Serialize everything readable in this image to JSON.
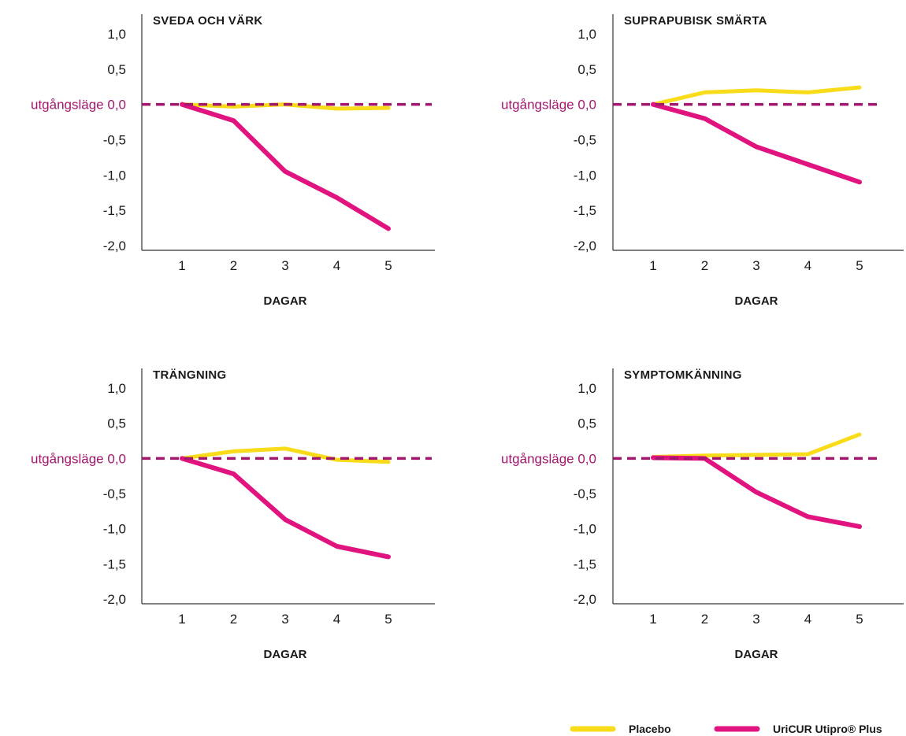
{
  "baseline_text": "utgångsläge",
  "colors": {
    "placebo": "#f8dc1a",
    "uricur": "#e0137f",
    "baseline": "#a3166d",
    "axis": "#333333",
    "text": "#1a1a1a"
  },
  "legend": {
    "items": [
      {
        "label": "Placebo",
        "color": "#f8dc1a"
      },
      {
        "label": "UriCUR Utipro® Plus",
        "color": "#e0137f"
      }
    ]
  },
  "chart_data": [
    {
      "type": "line",
      "title": "SVEDA OCH VÄRK",
      "xlabel": "DAGAR",
      "ylabel": "",
      "x": [
        1,
        2,
        3,
        4,
        5
      ],
      "x_tick_labels": [
        "1",
        "2",
        "3",
        "4",
        "5"
      ],
      "y_ticks": [
        1.0,
        0.5,
        0.0,
        -0.5,
        -1.0,
        -1.5,
        -2.0
      ],
      "y_tick_labels": [
        "1,0",
        "0,5",
        "0,0",
        "-0,5",
        "-1,0",
        "-1,5",
        "-2,0"
      ],
      "ylim": [
        -2.0,
        1.2
      ],
      "baseline": 0.0,
      "series": [
        {
          "name": "Placebo",
          "values": [
            0.0,
            -0.03,
            0.0,
            -0.06,
            -0.05
          ]
        },
        {
          "name": "UriCUR Utipro® Plus",
          "values": [
            0.0,
            -0.23,
            -0.95,
            -1.32,
            -1.76
          ]
        }
      ]
    },
    {
      "type": "line",
      "title": "SUPRAPUBISK SMÄRTA",
      "xlabel": "DAGAR",
      "ylabel": "",
      "x": [
        1,
        2,
        3,
        4,
        5
      ],
      "x_tick_labels": [
        "1",
        "2",
        "3",
        "4",
        "5"
      ],
      "y_ticks": [
        1.0,
        0.5,
        0.0,
        -0.5,
        -1.0,
        -1.5,
        -2.0
      ],
      "y_tick_labels": [
        "1,0",
        "0,5",
        "0,0",
        "-0,5",
        "-1,0",
        "-1,5",
        "-2,0"
      ],
      "ylim": [
        -2.0,
        1.2
      ],
      "baseline": 0.0,
      "series": [
        {
          "name": "Placebo",
          "values": [
            0.0,
            0.17,
            0.2,
            0.17,
            0.24
          ]
        },
        {
          "name": "UriCUR Utipro® Plus",
          "values": [
            0.0,
            -0.2,
            -0.6,
            -0.85,
            -1.1
          ]
        }
      ]
    },
    {
      "type": "line",
      "title": "TRÄNGNING",
      "xlabel": "DAGAR",
      "ylabel": "",
      "x": [
        1,
        2,
        3,
        4,
        5
      ],
      "x_tick_labels": [
        "1",
        "2",
        "3",
        "4",
        "5"
      ],
      "y_ticks": [
        1.0,
        0.5,
        0.0,
        -0.5,
        -1.0,
        -1.5,
        -2.0
      ],
      "y_tick_labels": [
        "1,0",
        "0,5",
        "0,0",
        "-0,5",
        "-1,0",
        "-1,5",
        "-2,0"
      ],
      "ylim": [
        -2.0,
        1.2
      ],
      "baseline": 0.0,
      "series": [
        {
          "name": "Placebo",
          "values": [
            0.0,
            0.1,
            0.14,
            -0.02,
            -0.05
          ]
        },
        {
          "name": "UriCUR Utipro® Plus",
          "values": [
            0.0,
            -0.22,
            -0.87,
            -1.25,
            -1.4
          ]
        }
      ]
    },
    {
      "type": "line",
      "title": "SYMPTOMKÄNNING",
      "xlabel": "DAGAR",
      "ylabel": "",
      "x": [
        1,
        2,
        3,
        4,
        5
      ],
      "x_tick_labels": [
        "1",
        "2",
        "3",
        "4",
        "5"
      ],
      "y_ticks": [
        1.0,
        0.5,
        0.0,
        -0.5,
        -1.0,
        -1.5,
        -2.0
      ],
      "y_tick_labels": [
        "1,0",
        "0,5",
        "0,0",
        "-0,5",
        "-1,0",
        "-1,5",
        "-2,0"
      ],
      "ylim": [
        -2.0,
        1.2
      ],
      "baseline": 0.0,
      "series": [
        {
          "name": "Placebo",
          "values": [
            0.02,
            0.04,
            0.05,
            0.06,
            0.34
          ]
        },
        {
          "name": "UriCUR Utipro® Plus",
          "values": [
            0.01,
            0.0,
            -0.48,
            -0.83,
            -0.97
          ]
        }
      ]
    }
  ]
}
